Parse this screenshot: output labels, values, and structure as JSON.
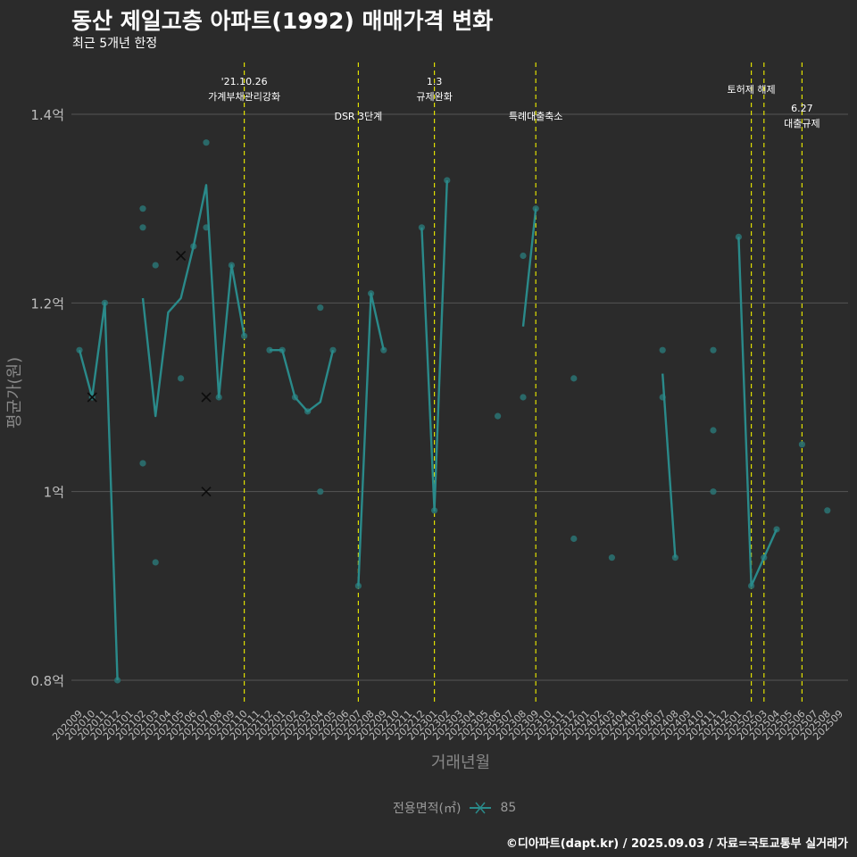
{
  "title": "동산 제일고층 아파트(1992) 매매가격 변화",
  "subtitle": "최근 5개년 한정",
  "credit": "©디아파트(dapt.kr) / 2025.09.03 / 자료=국토교통부 실거래가",
  "colors": {
    "background": "#2b2b2b",
    "grid": "#555555",
    "series": "#2a8a8a",
    "points": "#2a7070",
    "vline": "#e0e000",
    "text": "#ffffff",
    "axis_text": "#bdbdbd",
    "axis_title": "#888888"
  },
  "chart_data": {
    "type": "line",
    "title": "동산 제일고층 아파트(1992) 매매가격 변화",
    "xlabel": "거래년월",
    "ylabel": "평균가(원)",
    "ylim": [
      0.77,
      1.46
    ],
    "y_ticks": [
      {
        "value": 0.8,
        "label": "0.8억"
      },
      {
        "value": 1.0,
        "label": "1억"
      },
      {
        "value": 1.2,
        "label": "1.2억"
      },
      {
        "value": 1.4,
        "label": "1.4억"
      }
    ],
    "categories": [
      "202009",
      "202010",
      "202011",
      "202012",
      "202101",
      "202102",
      "202103",
      "202104",
      "202105",
      "202106",
      "202107",
      "202108",
      "202109",
      "202110",
      "202111",
      "202112",
      "202201",
      "202202",
      "202203",
      "202204",
      "202205",
      "202206",
      "202207",
      "202208",
      "202209",
      "202210",
      "202211",
      "202212",
      "202301",
      "202302",
      "202303",
      "202304",
      "202305",
      "202306",
      "202307",
      "202308",
      "202309",
      "202310",
      "202311",
      "202312",
      "202401",
      "202402",
      "202403",
      "202404",
      "202405",
      "202406",
      "202407",
      "202408",
      "202409",
      "202410",
      "202411",
      "202412",
      "202501",
      "202502",
      "202503",
      "202504",
      "202505",
      "202506",
      "202507",
      "202508",
      "202509"
    ],
    "legend_title": "전용면적(㎡)",
    "series": [
      {
        "name": "85",
        "line_segments": [
          [
            [
              0,
              1.15
            ],
            [
              1,
              1.1
            ],
            [
              2,
              1.2
            ],
            [
              3,
              0.8
            ]
          ],
          [
            [
              5,
              1.205
            ],
            [
              6,
              1.08
            ],
            [
              7,
              1.19
            ],
            [
              8,
              1.205
            ],
            [
              9,
              1.26
            ],
            [
              10,
              1.325
            ],
            [
              11,
              1.1
            ],
            [
              12,
              1.24
            ],
            [
              13,
              1.165
            ]
          ],
          [
            [
              15,
              1.15
            ],
            [
              16,
              1.15
            ],
            [
              17,
              1.1
            ],
            [
              18,
              1.085
            ],
            [
              19,
              1.095
            ],
            [
              20,
              1.15
            ]
          ],
          [
            [
              22,
              0.9
            ],
            [
              23,
              1.21
            ],
            [
              24,
              1.15
            ]
          ],
          [
            [
              27,
              1.28
            ],
            [
              28,
              0.98
            ],
            [
              29,
              1.33
            ]
          ],
          [
            [
              35,
              1.175
            ],
            [
              36,
              1.3
            ]
          ],
          [
            [
              46,
              1.125
            ],
            [
              47,
              0.93
            ]
          ],
          [
            [
              52,
              1.27
            ],
            [
              53,
              0.9
            ],
            [
              54,
              0.93
            ],
            [
              55,
              0.96
            ]
          ]
        ],
        "points": [
          [
            0,
            1.15
          ],
          [
            1,
            1.1
          ],
          [
            2,
            1.2
          ],
          [
            3,
            0.8
          ],
          [
            5,
            1.3
          ],
          [
            5,
            1.28
          ],
          [
            5,
            1.03
          ],
          [
            6,
            1.24
          ],
          [
            6,
            0.925
          ],
          [
            8,
            1.12
          ],
          [
            9,
            1.26
          ],
          [
            10,
            1.37
          ],
          [
            10,
            1.28
          ],
          [
            11,
            1.1
          ],
          [
            12,
            1.24
          ],
          [
            13,
            1.165
          ],
          [
            15,
            1.15
          ],
          [
            16,
            1.15
          ],
          [
            17,
            1.1
          ],
          [
            18,
            1.085
          ],
          [
            19,
            1.195
          ],
          [
            19,
            1.0
          ],
          [
            20,
            1.15
          ],
          [
            22,
            0.9
          ],
          [
            23,
            1.21
          ],
          [
            24,
            1.15
          ],
          [
            27,
            1.28
          ],
          [
            28,
            0.98
          ],
          [
            29,
            1.33
          ],
          [
            33,
            1.08
          ],
          [
            35,
            1.25
          ],
          [
            35,
            1.1
          ],
          [
            36,
            1.3
          ],
          [
            39,
            1.12
          ],
          [
            39,
            0.95
          ],
          [
            42,
            0.93
          ],
          [
            46,
            1.15
          ],
          [
            46,
            1.1
          ],
          [
            47,
            0.93
          ],
          [
            50,
            1.15
          ],
          [
            50,
            1.065
          ],
          [
            50,
            1.0
          ],
          [
            52,
            1.27
          ],
          [
            53,
            0.9
          ],
          [
            54,
            0.93
          ],
          [
            55,
            0.96
          ],
          [
            57,
            1.05
          ],
          [
            59,
            0.98
          ]
        ],
        "cross_points": [
          [
            1,
            1.1
          ],
          [
            8,
            1.25
          ],
          [
            10,
            1.1
          ],
          [
            10,
            1.0
          ]
        ]
      }
    ],
    "annotations": [
      {
        "x": 13.0,
        "label_lines": [
          "'21.10.26",
          "가계부채관리강화"
        ],
        "level": "top"
      },
      {
        "x": 22.0,
        "label_lines": [
          "DSR 3단계"
        ],
        "level": "low"
      },
      {
        "x": 28.0,
        "label_lines": [
          "1.3",
          "규제완화"
        ],
        "level": "top"
      },
      {
        "x": 36.0,
        "label_lines": [
          "특례대출축소"
        ],
        "level": "low"
      },
      {
        "x": 53.0,
        "label_lines": [
          "토허제 해제"
        ],
        "level": "mid"
      },
      {
        "x": 54.0,
        "label_lines": [],
        "level": "none"
      },
      {
        "x": 57.0,
        "label_lines": [
          "6.27",
          "대출규제"
        ],
        "level": "low2"
      }
    ]
  }
}
